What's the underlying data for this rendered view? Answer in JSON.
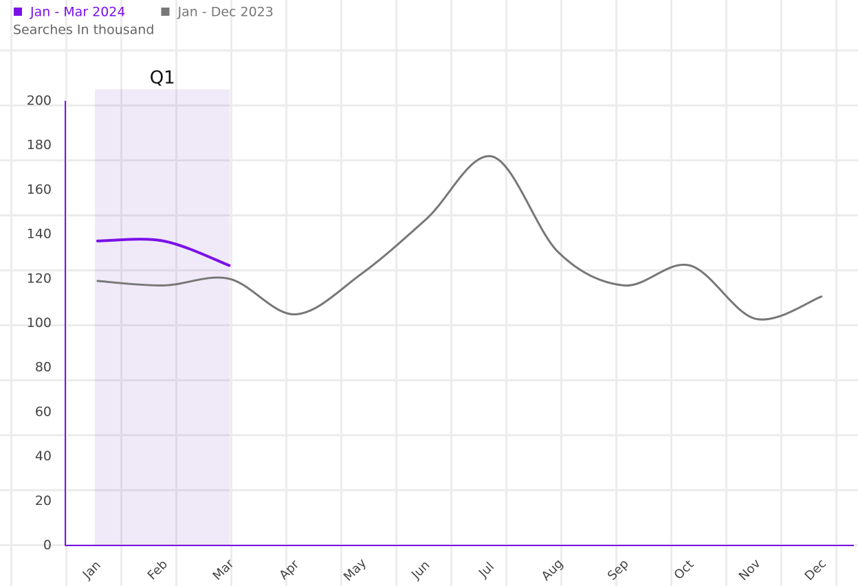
{
  "chart_data": {
    "type": "line",
    "y_label": "Searches In thousand",
    "categories": [
      "Jan",
      "Feb",
      "Mar",
      "Apr",
      "May",
      "Jun",
      "Jul",
      "Aug",
      "Sep",
      "Oct",
      "Nov",
      "Dec"
    ],
    "series": [
      {
        "name": "Jan - Mar 2024",
        "color": "#7b10e8",
        "values": [
          137,
          137,
          126,
          null,
          null,
          null,
          null,
          null,
          null,
          null,
          null,
          null
        ]
      },
      {
        "name": "Jan - Dec 2023",
        "color": "#777777",
        "values": [
          119,
          117,
          120,
          104,
          122,
          147,
          175,
          132,
          117,
          126,
          102,
          112
        ]
      }
    ],
    "annotations": [
      {
        "label": "Q1",
        "start": "Jan",
        "end": "Mar"
      }
    ],
    "ylim": [
      0,
      200
    ],
    "yticks": [
      0,
      20,
      40,
      60,
      80,
      100,
      120,
      140,
      160,
      180,
      200
    ],
    "axis_color": "#7b10e8"
  }
}
